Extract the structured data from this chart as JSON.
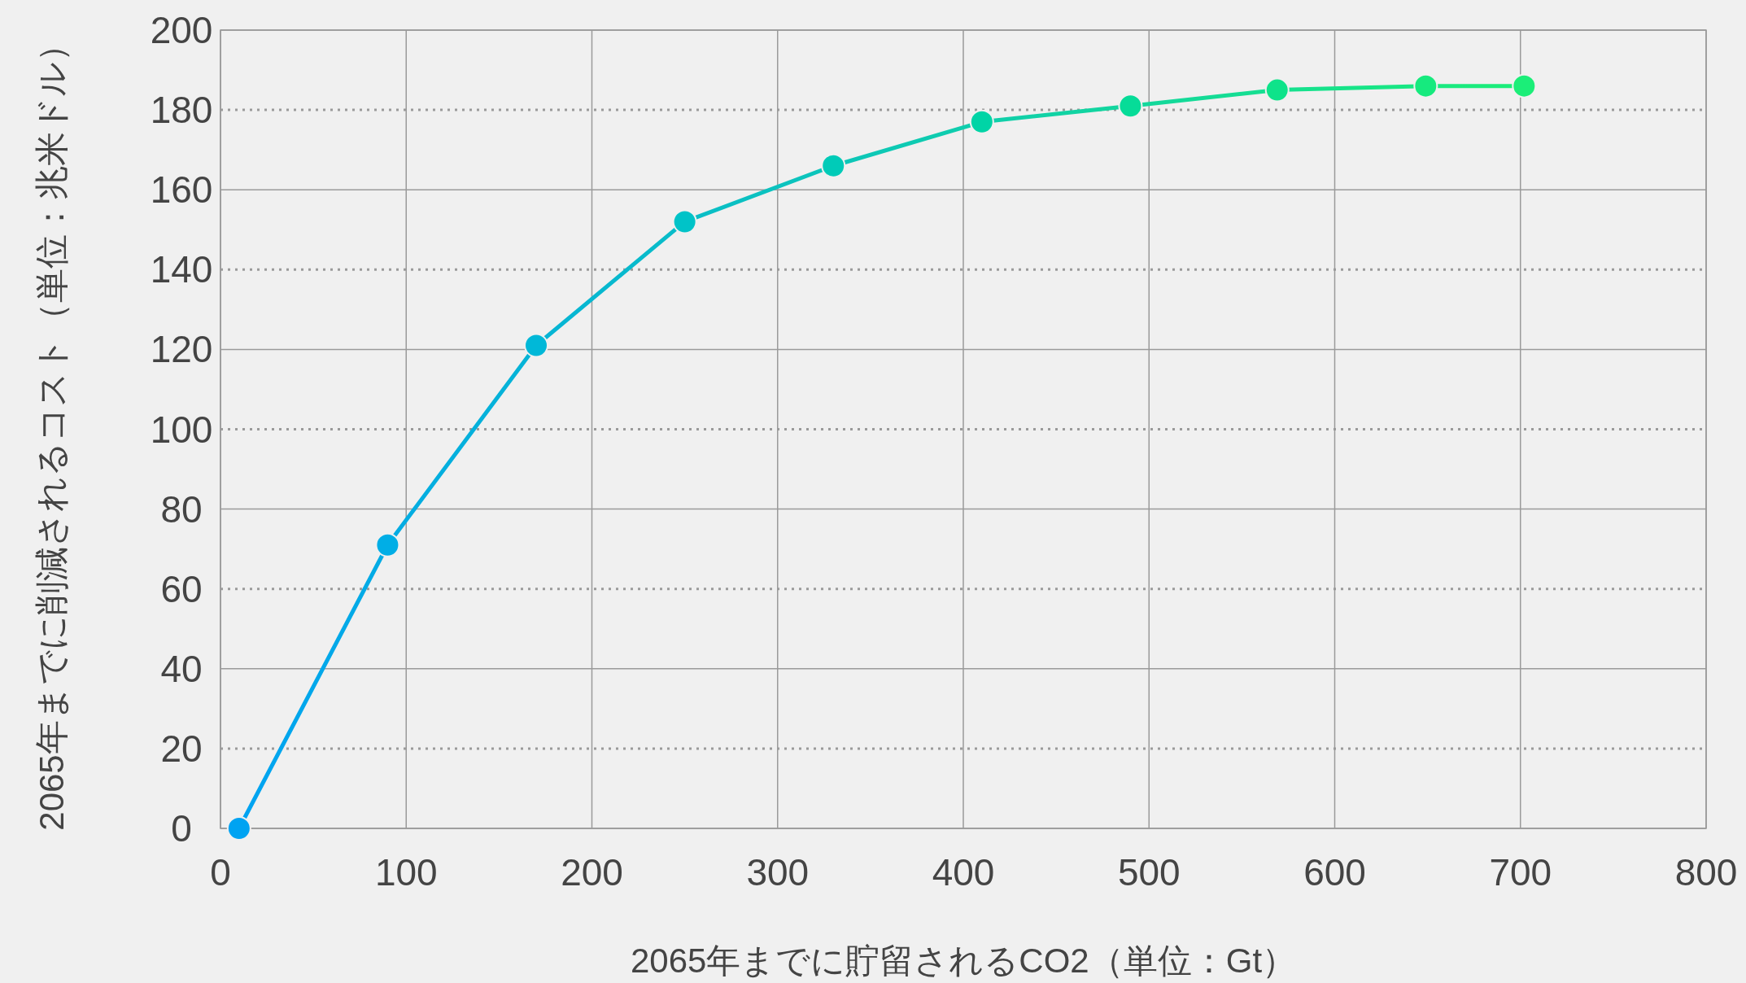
{
  "chart_data": {
    "type": "line",
    "xlabel": "2065年までに貯留されるCO2（単位：Gt）",
    "ylabel": "2065年までに削減されるコスト（単位：兆米ドル）",
    "x": [
      10,
      90,
      170,
      250,
      330,
      410,
      490,
      569,
      649,
      702
    ],
    "values": [
      0,
      71,
      121,
      152,
      166,
      177,
      181,
      185,
      186,
      186
    ],
    "colors": [
      "#00a3f2",
      "#00aee6",
      "#00b8d8",
      "#00c3c8",
      "#00cbb8",
      "#00d4a6",
      "#06dc98",
      "#0ee38a",
      "#16ea7e",
      "#1bee78"
    ],
    "xlim": [
      0,
      800
    ],
    "xticks": [
      0,
      100,
      200,
      300,
      400,
      500,
      600,
      700,
      800
    ],
    "ylim": [
      0,
      200
    ],
    "yticks": [
      0,
      20,
      40,
      60,
      80,
      100,
      120,
      140,
      160,
      180,
      200
    ],
    "grid": true,
    "marker": "circle",
    "line_style": "solid"
  }
}
